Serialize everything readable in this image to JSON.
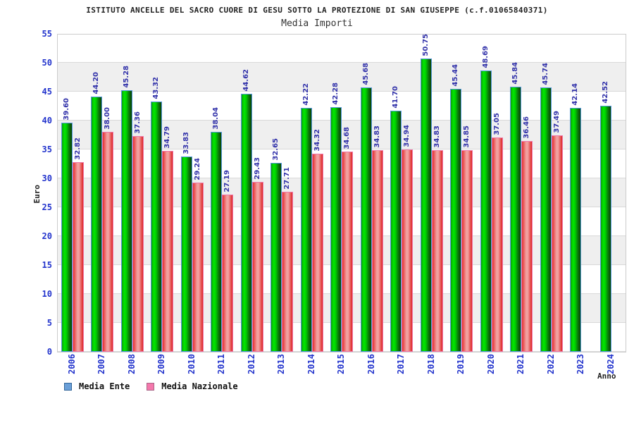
{
  "header": {
    "title": "ISTITUTO ANCELLE DEL SACRO CUORE DI GESU SOTTO LA PROTEZIONE DI SAN GIUSEPPE (c.f.01065840371)",
    "subtitle": "Media Importi"
  },
  "chart_data": {
    "type": "bar",
    "title": "ISTITUTO ANCELLE DEL SACRO CUORE DI GESU SOTTO LA PROTEZIONE DI SAN GIUSEPPE (c.f.01065840371)",
    "subtitle": "Media Importi",
    "xlabel": "Anno",
    "ylabel": "Euro",
    "ylim": [
      0,
      55
    ],
    "ytick_step": 5,
    "grid": true,
    "band_fill_colors": [
      "#ffffff",
      "#efefef"
    ],
    "legend_position": "bottom-left",
    "value_label_color": "#3333aa",
    "axis_tick_color": "#2233cc",
    "categories": [
      "2006",
      "2007",
      "2008",
      "2009",
      "2010",
      "2011",
      "2012",
      "2013",
      "2014",
      "2015",
      "2016",
      "2017",
      "2018",
      "2019",
      "2020",
      "2021",
      "2022",
      "2023",
      "2024"
    ],
    "series": [
      {
        "name": "Media Ente",
        "legend_color": "#6a9fd8",
        "bar_color_main": "#00cc00",
        "bar_border_color": "#5599dd",
        "values": [
          39.6,
          44.2,
          45.28,
          43.32,
          33.83,
          38.04,
          44.62,
          32.65,
          42.22,
          42.28,
          45.68,
          41.7,
          50.75,
          45.44,
          48.69,
          45.84,
          45.74,
          42.14,
          42.52
        ]
      },
      {
        "name": "Media Nazionale",
        "legend_color": "#f478ac",
        "bar_color_main": "#e63030",
        "bar_border_color": "#ee77aa",
        "values": [
          32.82,
          38.0,
          37.36,
          34.79,
          29.24,
          27.19,
          29.43,
          27.71,
          34.32,
          34.68,
          34.83,
          34.94,
          34.83,
          34.85,
          37.05,
          36.46,
          37.49,
          null,
          null
        ]
      }
    ]
  }
}
